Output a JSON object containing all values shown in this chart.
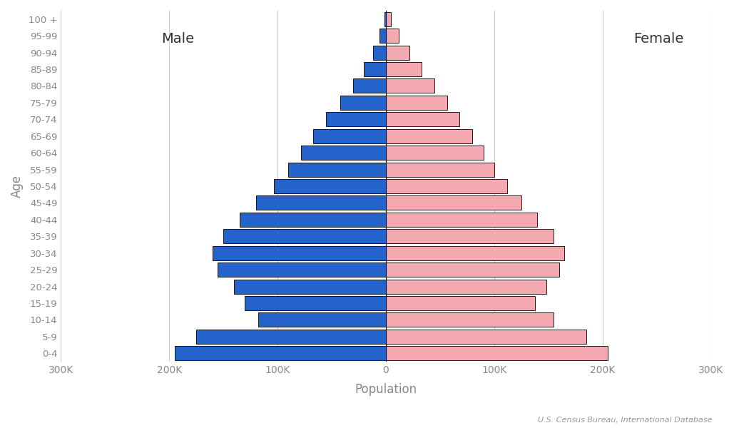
{
  "age_groups": [
    "0-4",
    "5-9",
    "10-14",
    "15-19",
    "20-24",
    "25-29",
    "30-34",
    "35-39",
    "40-44",
    "45-49",
    "50-54",
    "55-59",
    "60-64",
    "65-69",
    "70-74",
    "75-79",
    "80-84",
    "85-89",
    "90-94",
    "95-99",
    "100 +"
  ],
  "male": [
    195000,
    175000,
    118000,
    130000,
    140000,
    155000,
    160000,
    150000,
    135000,
    120000,
    103000,
    90000,
    78000,
    67000,
    55000,
    42000,
    30000,
    20000,
    12000,
    5500,
    1500
  ],
  "female": [
    205000,
    185000,
    155000,
    138000,
    148000,
    160000,
    165000,
    155000,
    140000,
    125000,
    112000,
    100000,
    90000,
    80000,
    68000,
    57000,
    45000,
    33000,
    22000,
    12000,
    5000
  ],
  "male_color": "#2563cc",
  "female_color": "#f4a8b0",
  "male_edge_color": "#000000",
  "female_edge_color": "#000000",
  "xlabel": "Population",
  "ylabel": "Age",
  "xlim": 300000,
  "tick_values": [
    -300000,
    -200000,
    -100000,
    0,
    100000,
    200000,
    300000
  ],
  "label_male": "Male",
  "label_female": "Female",
  "source_text": "U.S. Census Bureau, International Database",
  "bg_color": "#ffffff",
  "grid_color": "#cccccc",
  "bar_height": 0.85
}
